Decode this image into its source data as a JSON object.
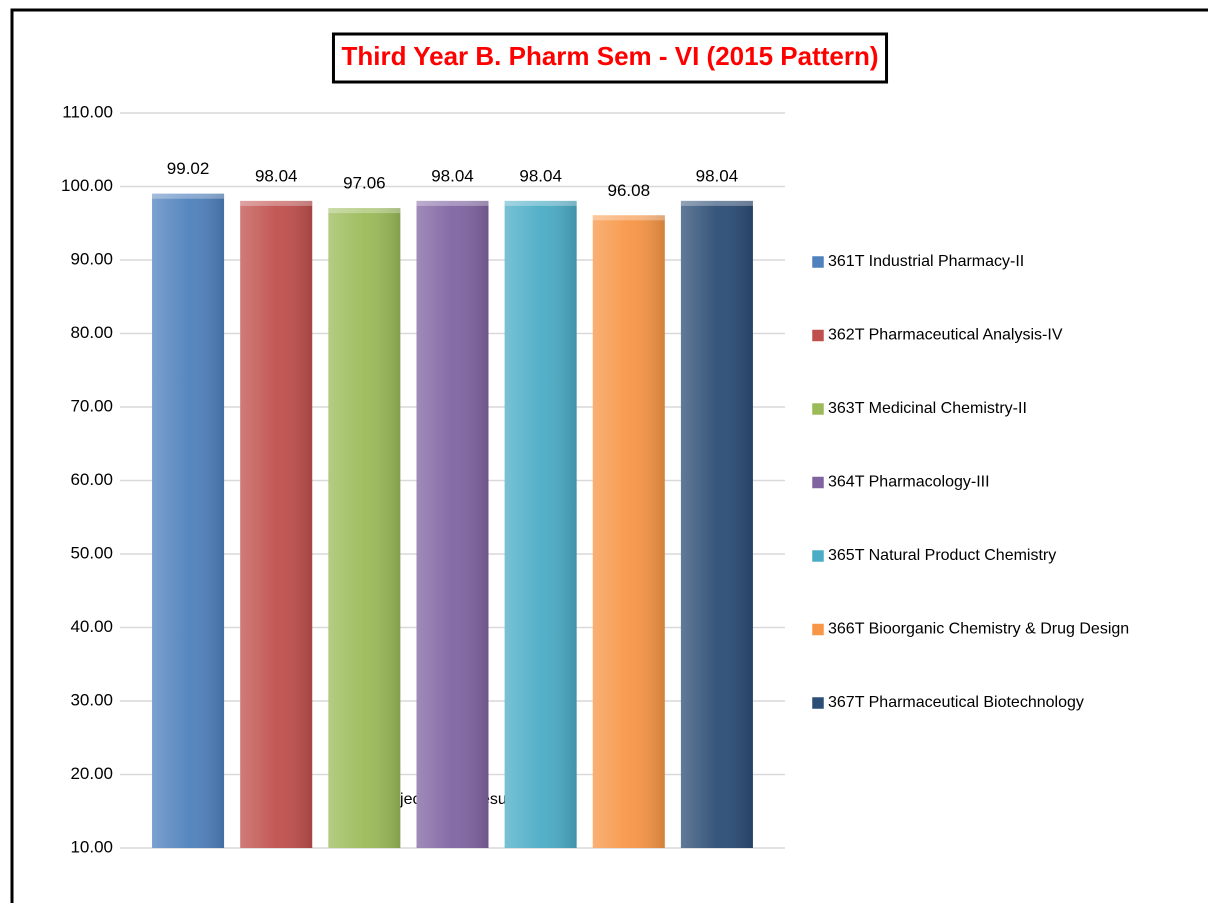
{
  "chart_data": {
    "type": "bar",
    "title": "Third Year B. Pharm Sem - VI (2015 Pattern)",
    "categories": [
      "Subject Wise Result %"
    ],
    "series": [
      {
        "name": "361T Industrial Pharmacy-II",
        "color": "#4f81bd",
        "values": [
          99.02
        ]
      },
      {
        "name": "362T Pharmaceutical Analysis-IV",
        "color": "#c0504d",
        "values": [
          98.04
        ]
      },
      {
        "name": "363T Medicinal Chemistry-II",
        "color": "#9bbb59",
        "values": [
          97.06
        ]
      },
      {
        "name": "364T Pharmacology-III",
        "color": "#8064a2",
        "values": [
          98.04
        ]
      },
      {
        "name": "365T Natural Product Chemistry",
        "color": "#4bacc6",
        "values": [
          98.04
        ]
      },
      {
        "name": "366T Bioorganic Chemistry & Drug Design",
        "color": "#f79646",
        "values": [
          96.08
        ]
      },
      {
        "name": "367T Pharmaceutical Biotechnology",
        "color": "#2c4d75",
        "values": [
          98.04
        ]
      }
    ],
    "ylim": [
      10,
      110
    ],
    "yticks": [
      {
        "value": 10,
        "label": "10.00"
      },
      {
        "value": 20,
        "label": "20.00"
      },
      {
        "value": 30,
        "label": "30.00"
      },
      {
        "value": 40,
        "label": "40.00"
      },
      {
        "value": 50,
        "label": "50.00"
      },
      {
        "value": 60,
        "label": "60.00"
      },
      {
        "value": 70,
        "label": "70.00"
      },
      {
        "value": 80,
        "label": "80.00"
      },
      {
        "value": 90,
        "label": "90.00"
      },
      {
        "value": 100,
        "label": "100.00"
      },
      {
        "value": 110,
        "label": "110.00"
      }
    ],
    "grid": true,
    "legend": "right"
  }
}
